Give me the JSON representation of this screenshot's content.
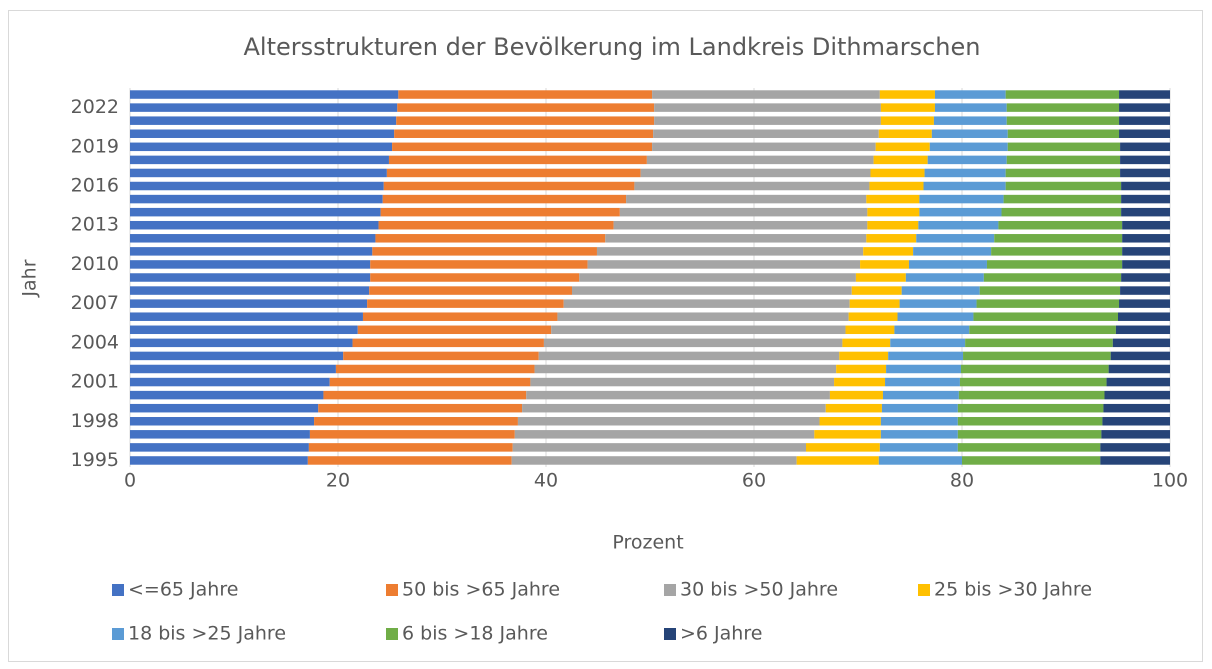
{
  "chart_data": {
    "type": "stacked-barh",
    "title": "Altersstrukturen der Bevölkerung im Landkreis Dithmarschen",
    "x_label": "Prozent",
    "y_label": "Jahr",
    "categories": [
      "1995",
      null,
      null,
      "1998",
      null,
      null,
      "2001",
      null,
      null,
      "2004",
      null,
      null,
      "2007",
      null,
      null,
      "2010",
      null,
      null,
      "2013",
      null,
      null,
      "2016",
      null,
      null,
      "2019",
      null,
      null,
      "2022",
      null
    ],
    "series": [
      {
        "name": "<=65 Jahre",
        "color": "#4472c4",
        "values": [
          17.1,
          17.2,
          17.3,
          17.7,
          18.1,
          18.6,
          19.2,
          19.8,
          20.5,
          21.4,
          21.9,
          22.4,
          22.8,
          23.0,
          23.1,
          23.1,
          23.3,
          23.6,
          23.9,
          24.1,
          24.3,
          24.4,
          24.7,
          24.9,
          25.2,
          25.4,
          25.6,
          25.7,
          25.8
        ]
      },
      {
        "name": "50 bis >65 Jahre",
        "color": "#ed7d31",
        "values": [
          19.6,
          19.6,
          19.7,
          19.6,
          19.6,
          19.5,
          19.3,
          19.1,
          18.8,
          18.4,
          18.6,
          18.7,
          18.9,
          19.5,
          20.1,
          20.9,
          21.6,
          22.1,
          22.6,
          23.0,
          23.4,
          24.1,
          24.4,
          24.8,
          25.0,
          24.9,
          24.8,
          24.7,
          24.4
        ]
      },
      {
        "name": "30 bis >50 Jahre",
        "color": "#a5a5a5",
        "values": [
          27.4,
          28.2,
          28.8,
          29.0,
          29.2,
          29.2,
          29.2,
          29.0,
          28.9,
          28.7,
          28.3,
          28.0,
          27.5,
          26.9,
          26.6,
          26.2,
          25.6,
          25.1,
          24.4,
          23.8,
          23.1,
          22.6,
          22.1,
          21.8,
          21.5,
          21.7,
          21.8,
          21.8,
          21.9
        ]
      },
      {
        "name": "25 bis >30 Jahre",
        "color": "#ffc000",
        "values": [
          7.9,
          7.1,
          6.4,
          5.9,
          5.4,
          5.1,
          4.9,
          4.8,
          4.7,
          4.6,
          4.7,
          4.7,
          4.8,
          4.8,
          4.8,
          4.7,
          4.8,
          4.8,
          4.9,
          5.0,
          5.1,
          5.2,
          5.2,
          5.2,
          5.2,
          5.1,
          5.1,
          5.2,
          5.3
        ]
      },
      {
        "name": "18 bis >25 Jahre",
        "color": "#5b9bd5",
        "values": [
          8.0,
          7.5,
          7.4,
          7.4,
          7.3,
          7.3,
          7.2,
          7.2,
          7.2,
          7.2,
          7.2,
          7.3,
          7.4,
          7.5,
          7.5,
          7.5,
          7.5,
          7.5,
          7.7,
          7.9,
          8.1,
          7.9,
          7.8,
          7.6,
          7.5,
          7.3,
          7.0,
          6.9,
          6.8
        ]
      },
      {
        "name": "6 bis >18 Jahre",
        "color": "#70ad47",
        "values": [
          13.3,
          13.7,
          13.8,
          13.9,
          14.0,
          14.0,
          14.1,
          14.2,
          14.2,
          14.2,
          14.1,
          13.9,
          13.7,
          13.5,
          13.2,
          13.0,
          12.6,
          12.3,
          11.9,
          11.5,
          11.3,
          11.1,
          11.0,
          10.9,
          10.8,
          10.7,
          10.8,
          10.8,
          10.9
        ]
      },
      {
        "name": ">6 Jahre",
        "color": "#264478",
        "values": [
          6.7,
          6.7,
          6.6,
          6.5,
          6.4,
          6.3,
          6.1,
          5.9,
          5.7,
          5.5,
          5.2,
          5.0,
          4.9,
          4.8,
          4.7,
          4.6,
          4.6,
          4.6,
          4.6,
          4.7,
          4.7,
          4.7,
          4.8,
          4.8,
          4.8,
          4.9,
          4.9,
          4.9,
          4.9
        ]
      }
    ],
    "xlim": [
      0,
      100
    ],
    "xticks": [
      0,
      20,
      40,
      60,
      80,
      100
    ],
    "grid": true
  }
}
